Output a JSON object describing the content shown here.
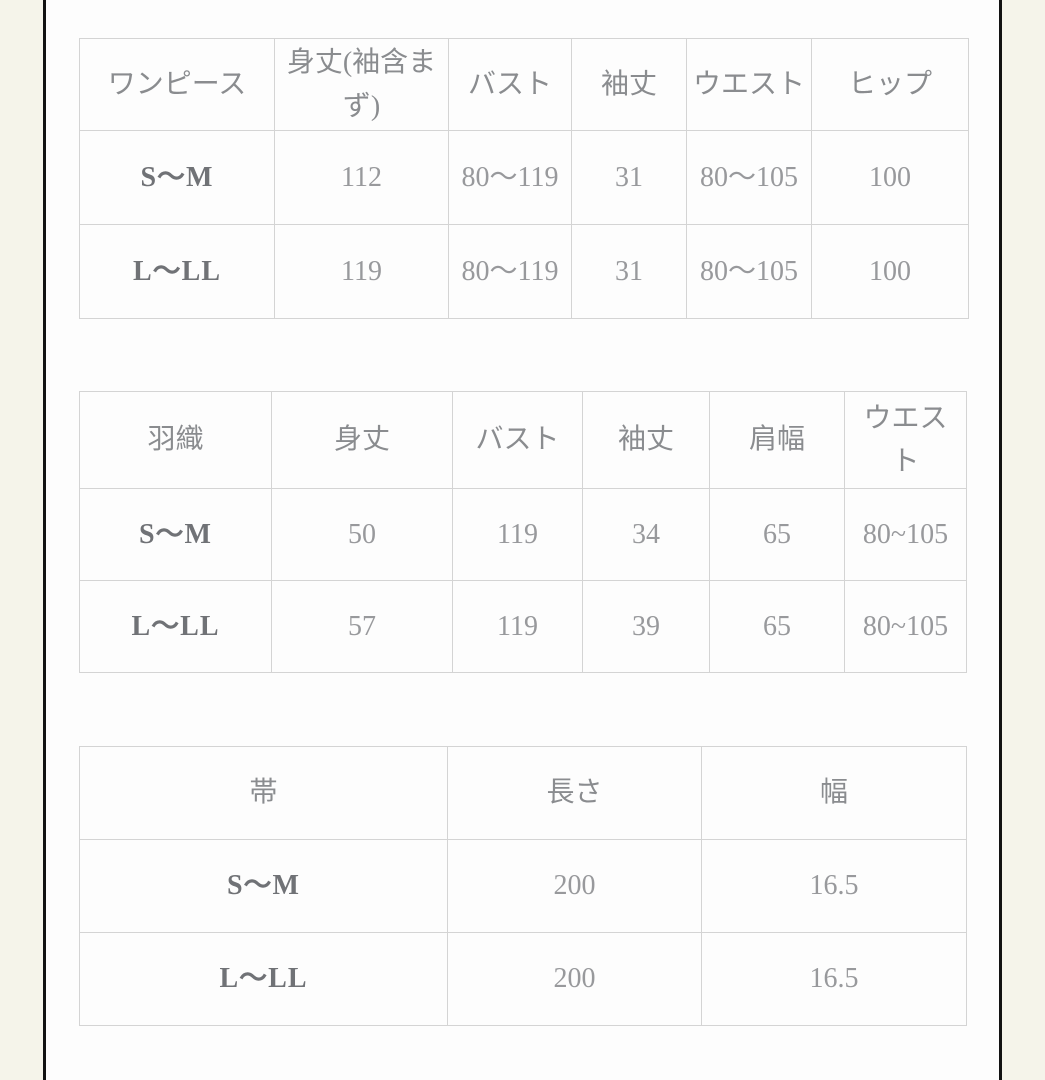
{
  "page": {
    "background_color": "#f5f4ea",
    "panel_color": "#fdfdfd",
    "edge_line_color": "#121212",
    "table_border_color": "#d4d4d4"
  },
  "tables": [
    {
      "name": "onepiece-size-table",
      "title_header": "ワンピース",
      "headers": [
        "ワンピース",
        "身丈(袖含まず)",
        "バスト",
        "袖丈",
        "ウエスト",
        "ヒップ"
      ],
      "rows": [
        {
          "label": "S〜M",
          "values": [
            "112",
            "80〜119",
            "31",
            "80〜105",
            "100"
          ]
        },
        {
          "label": "L〜LL",
          "values": [
            "119",
            "80〜119",
            "31",
            "80〜105",
            "100"
          ]
        }
      ]
    },
    {
      "name": "haori-size-table",
      "title_header": "羽織",
      "headers": [
        "羽織",
        "身丈",
        "バスト",
        "袖丈",
        "肩幅",
        "ウエスト"
      ],
      "rows": [
        {
          "label": "S〜M",
          "values": [
            "50",
            "119",
            "34",
            "65",
            "80~105"
          ]
        },
        {
          "label": "L〜LL",
          "values": [
            "57",
            "119",
            "39",
            "65",
            "80~105"
          ]
        }
      ]
    },
    {
      "name": "obi-size-table",
      "title_header": "帯",
      "headers": [
        "帯",
        "長さ",
        "幅"
      ],
      "rows": [
        {
          "label": "S〜M",
          "values": [
            "200",
            "16.5"
          ]
        },
        {
          "label": "L〜LL",
          "values": [
            "200",
            "16.5"
          ]
        }
      ]
    }
  ]
}
